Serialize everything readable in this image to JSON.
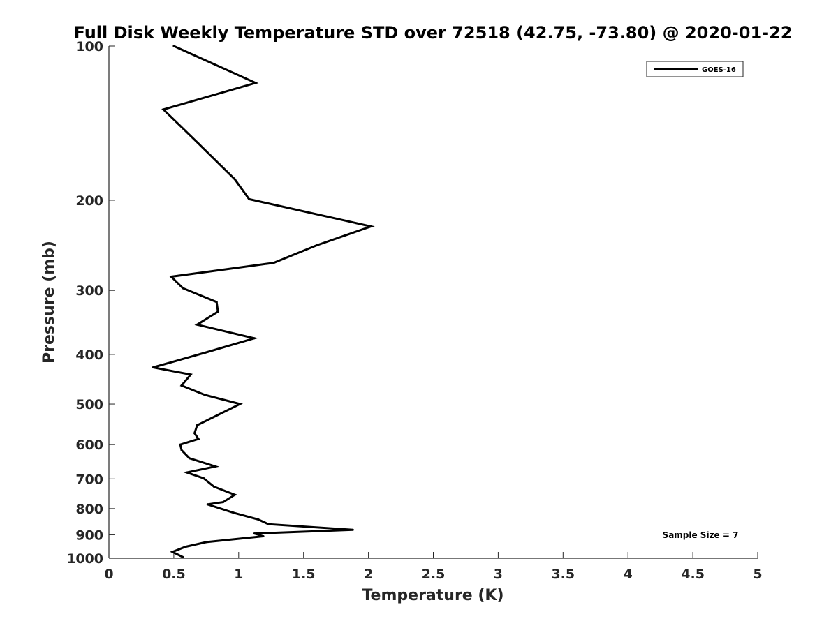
{
  "chart_data": {
    "type": "line",
    "title": "Full Disk Weekly Temperature STD over 72518 (42.75, -73.80) @ 2020-01-22",
    "xlabel": "Temperature (K)",
    "ylabel": "Pressure (mb)",
    "xlim": [
      0,
      5
    ],
    "ylim": [
      100,
      1000
    ],
    "y_scale": "log",
    "y_reversed": true,
    "x_ticks": [
      "0",
      "0.5",
      "1",
      "1.5",
      "2",
      "2.5",
      "3",
      "3.5",
      "4",
      "4.5",
      "5"
    ],
    "y_ticks": [
      "100",
      "200",
      "300",
      "400",
      "500",
      "600",
      "700",
      "800",
      "900",
      "1000"
    ],
    "grid": false,
    "legend_position": "top-right",
    "annotation": "Sample Size = 7",
    "colors": {
      "line": "#000000",
      "axis": "#262626",
      "background": "#ffffff"
    },
    "series": [
      {
        "name": "GOES-16",
        "x": [
          0.5,
          1.13,
          0.42,
          0.69,
          0.97,
          1.08,
          2.02,
          1.6,
          1.27,
          0.48,
          0.57,
          0.83,
          0.84,
          0.68,
          1.12,
          0.74,
          0.34,
          0.63,
          0.56,
          0.74,
          1.01,
          0.84,
          0.68,
          0.66,
          0.69,
          0.55,
          0.56,
          0.62,
          0.82,
          0.6,
          0.73,
          0.81,
          0.97,
          0.88,
          0.76,
          0.96,
          1.15,
          1.23,
          1.88,
          1.12,
          1.19,
          0.75,
          0.59,
          0.49,
          0.57
        ],
        "y": [
          100,
          118,
          133,
          155,
          182,
          199,
          225,
          245,
          265,
          282,
          297,
          316,
          330,
          350,
          372,
          397,
          424,
          438,
          460,
          480,
          500,
          525,
          550,
          570,
          585,
          600,
          615,
          638,
          662,
          680,
          698,
          725,
          752,
          777,
          785,
          815,
          840,
          858,
          880,
          895,
          906,
          930,
          950,
          972,
          995
        ]
      }
    ]
  }
}
